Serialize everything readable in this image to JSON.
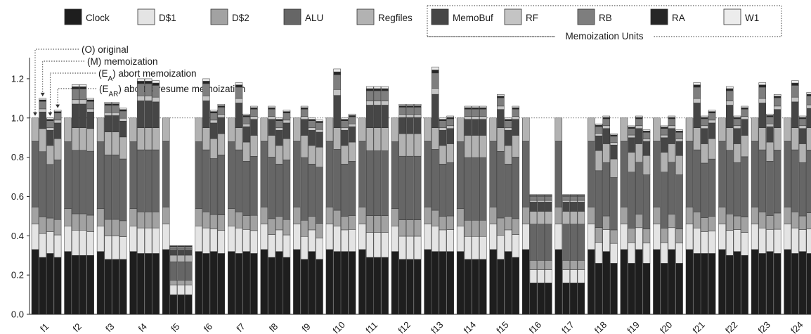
{
  "chart_data": {
    "type": "bar",
    "subtype": "stacked-grouped",
    "ylim": [
      0,
      1.3
    ],
    "yticks": [
      "0.0",
      "0.2",
      "0.4",
      "0.6",
      "0.8",
      "1.0",
      "1.2"
    ],
    "reference_line": 1.0,
    "legend_position": "top",
    "legend_group_label": "Memoization Units",
    "variants": [
      "(O) original",
      "(M) memoization",
      "(E_A) abort memoization",
      "(E_AR) abort & resume memoization"
    ],
    "variant_keys": [
      "O",
      "M",
      "EA",
      "EAR"
    ],
    "components": [
      {
        "name": "Clock",
        "color": "#1e1e1e"
      },
      {
        "name": "D$1",
        "color": "#e4e4e4"
      },
      {
        "name": "D$2",
        "color": "#a2a2a2"
      },
      {
        "name": "ALU",
        "color": "#666666"
      },
      {
        "name": "Regfiles",
        "color": "#b2b2b2"
      },
      {
        "name": "MemoBuf",
        "color": "#464646"
      },
      {
        "name": "RF",
        "color": "#c4c4c4"
      },
      {
        "name": "RB",
        "color": "#7e7e7e"
      },
      {
        "name": "RA",
        "color": "#262626"
      },
      {
        "name": "W1",
        "color": "#ececec"
      }
    ],
    "categories": [
      "f1",
      "f2",
      "f3",
      "f4",
      "f5",
      "f6",
      "f7",
      "f8",
      "f9",
      "f10",
      "f11",
      "f12",
      "f13",
      "f14",
      "f15",
      "f16",
      "f17",
      "f18",
      "f19",
      "f20",
      "f21",
      "f22",
      "f23",
      "f24"
    ],
    "totals": [
      [
        1.0,
        1.1,
        1.0,
        1.04
      ],
      [
        1.0,
        1.17,
        1.17,
        1.1
      ],
      [
        1.0,
        1.08,
        1.08,
        1.05
      ],
      [
        1.0,
        1.2,
        1.2,
        1.19
      ],
      [
        1.0,
        0.35,
        0.35,
        0.35
      ],
      [
        1.0,
        1.2,
        1.04,
        1.07
      ],
      [
        1.0,
        1.18,
        1.02,
        1.06
      ],
      [
        1.0,
        1.06,
        1.0,
        1.04
      ],
      [
        1.0,
        1.06,
        1.0,
        0.99
      ],
      [
        1.0,
        1.25,
        1.0,
        1.02
      ],
      [
        1.0,
        1.16,
        1.16,
        1.16
      ],
      [
        1.0,
        1.07,
        1.07,
        1.07
      ],
      [
        1.0,
        1.26,
        1.0,
        1.01
      ],
      [
        1.0,
        1.06,
        1.06,
        1.06
      ],
      [
        1.0,
        1.12,
        1.0,
        1.06
      ],
      [
        1.0,
        0.61,
        0.61,
        0.61
      ],
      [
        1.0,
        0.61,
        0.61,
        0.61
      ],
      [
        1.0,
        0.97,
        1.01,
        0.92
      ],
      [
        1.0,
        0.96,
        1.01,
        0.94
      ],
      [
        1.0,
        0.96,
        1.01,
        0.94
      ],
      [
        1.0,
        1.18,
        1.01,
        1.04
      ],
      [
        1.0,
        1.16,
        1.01,
        1.06
      ],
      [
        1.0,
        1.18,
        1.02,
        1.12
      ],
      [
        1.0,
        1.19,
        1.01,
        1.13
      ]
    ],
    "clock": [
      [
        0.33,
        0.29,
        0.31,
        0.29
      ],
      [
        0.32,
        0.3,
        0.3,
        0.3
      ],
      [
        0.32,
        0.28,
        0.28,
        0.28
      ],
      [
        0.32,
        0.31,
        0.31,
        0.31
      ],
      [
        0.33,
        0.1,
        0.1,
        0.1
      ],
      [
        0.32,
        0.31,
        0.32,
        0.31
      ],
      [
        0.32,
        0.31,
        0.32,
        0.31
      ],
      [
        0.33,
        0.29,
        0.32,
        0.29
      ],
      [
        0.33,
        0.28,
        0.32,
        0.28
      ],
      [
        0.33,
        0.32,
        0.32,
        0.32
      ],
      [
        0.33,
        0.29,
        0.29,
        0.29
      ],
      [
        0.32,
        0.28,
        0.28,
        0.28
      ],
      [
        0.33,
        0.32,
        0.32,
        0.32
      ],
      [
        0.32,
        0.28,
        0.28,
        0.28
      ],
      [
        0.33,
        0.28,
        0.32,
        0.29
      ],
      [
        0.33,
        0.16,
        0.16,
        0.16
      ],
      [
        0.33,
        0.16,
        0.16,
        0.16
      ],
      [
        0.33,
        0.26,
        0.32,
        0.26
      ],
      [
        0.33,
        0.26,
        0.33,
        0.26
      ],
      [
        0.33,
        0.26,
        0.33,
        0.26
      ],
      [
        0.33,
        0.31,
        0.31,
        0.31
      ],
      [
        0.33,
        0.3,
        0.32,
        0.3
      ],
      [
        0.33,
        0.31,
        0.32,
        0.31
      ],
      [
        0.33,
        0.31,
        0.32,
        0.31
      ]
    ]
  }
}
